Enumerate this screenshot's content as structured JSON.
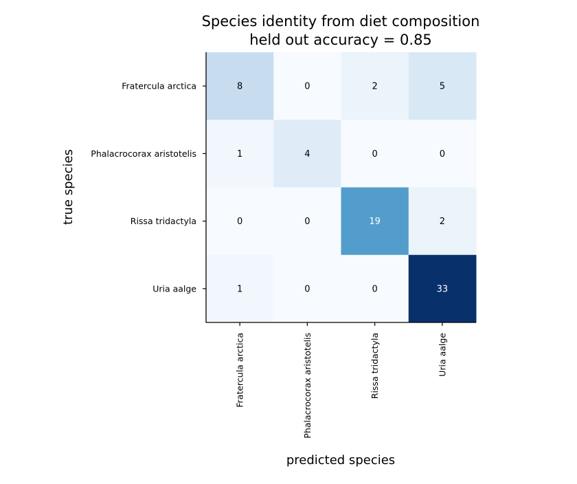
{
  "chart_data": {
    "type": "heatmap",
    "title_line1": "Species identity from diet composition",
    "title_line2": "held out accuracy = 0.85",
    "xlabel": "predicted species",
    "ylabel": "true species",
    "row_labels": [
      "Fratercula arctica",
      "Phalacrocorax aristotelis",
      "Rissa tridactyla",
      "Uria aalge"
    ],
    "col_labels": [
      "Fratercula arctica",
      "Phalacrocorax aristotelis",
      "Rissa tridactyla",
      "Uria aalge"
    ],
    "matrix": [
      [
        8,
        0,
        2,
        5
      ],
      [
        1,
        4,
        0,
        0
      ],
      [
        0,
        0,
        19,
        2
      ],
      [
        1,
        0,
        0,
        33
      ]
    ],
    "colormap": "Blues",
    "value_range": [
      0,
      33
    ]
  }
}
